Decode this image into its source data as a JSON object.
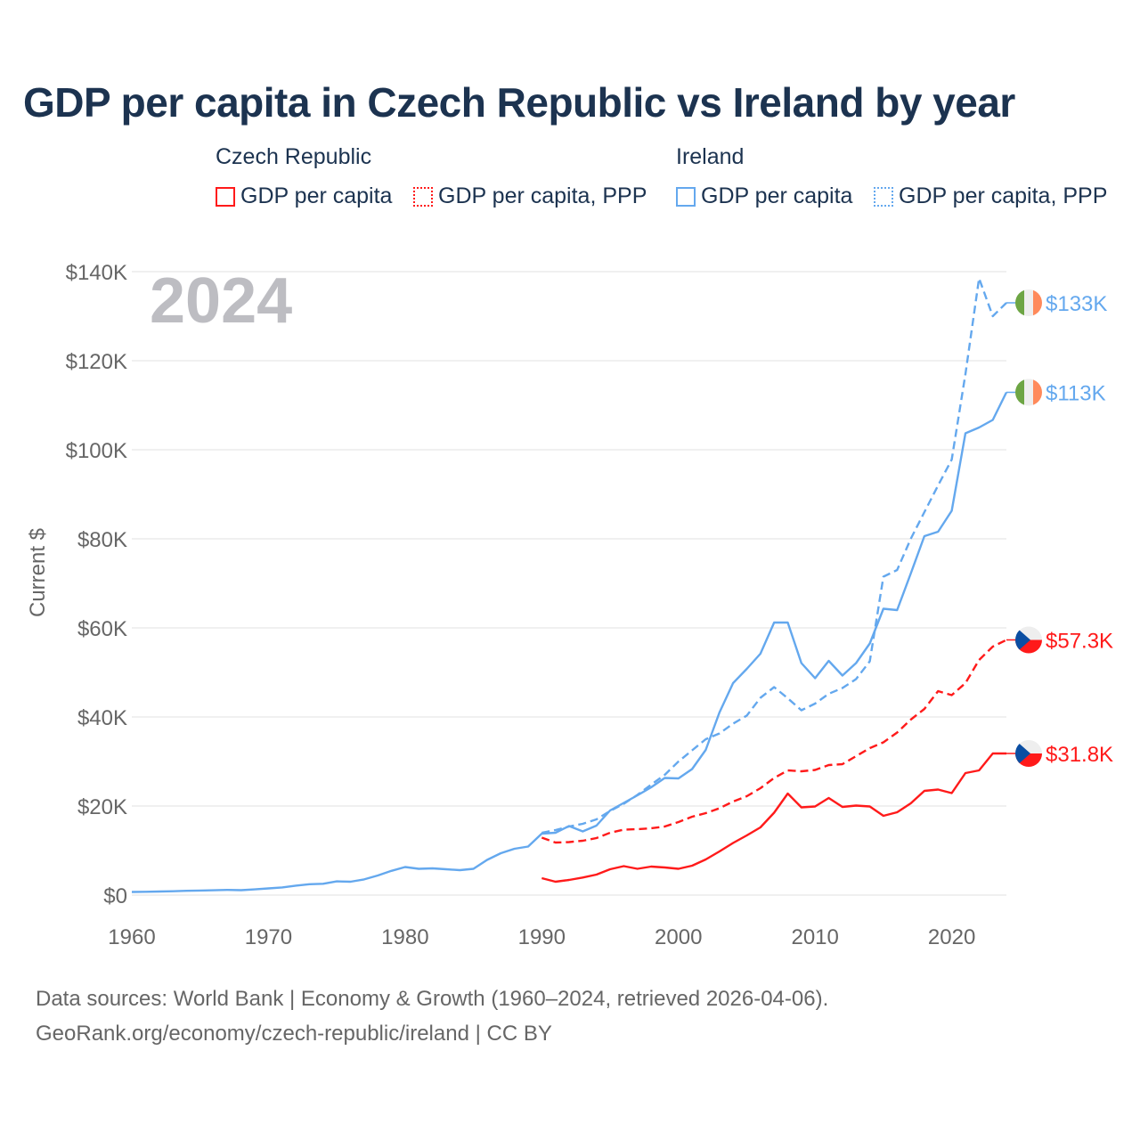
{
  "title": "GDP per capita in Czech Republic vs Ireland by year",
  "legend": {
    "groups": [
      {
        "name": "Czech Republic",
        "items": [
          "GDP per capita",
          "GDP per capita, PPP"
        ]
      },
      {
        "name": "Ireland",
        "items": [
          "GDP per capita",
          "GDP per capita, PPP"
        ]
      }
    ]
  },
  "year_label": "2024",
  "footer": {
    "line1": "Data sources: World Bank | Economy & Growth (1960–2024, retrieved 2026-04-06).",
    "line2": "GeoRank.org/economy/czech-republic/ireland | CC BY"
  },
  "colors": {
    "czech": "#ff1a1a",
    "ireland": "#64a8ee",
    "grid": "#e6e6e6",
    "axis_text": "#666666",
    "title": "#1c3350"
  },
  "chart_data": {
    "type": "line",
    "title": "GDP per capita in Czech Republic vs Ireland by year",
    "xlabel": "",
    "ylabel": "Current $",
    "xlim": [
      1960,
      2024
    ],
    "ylim": [
      0,
      140000
    ],
    "x_ticks": [
      1960,
      1970,
      1980,
      1990,
      2000,
      2010,
      2020
    ],
    "x_tick_labels": [
      "1960",
      "1970",
      "1980",
      "1990",
      "2000",
      "2010",
      "2020"
    ],
    "y_ticks": [
      0,
      20000,
      40000,
      60000,
      80000,
      100000,
      120000,
      140000
    ],
    "y_tick_labels": [
      "$0",
      "$20K",
      "$40K",
      "$60K",
      "$80K",
      "$100K",
      "$120K",
      "$140K"
    ],
    "grid": true,
    "legend_position": "top",
    "series": [
      {
        "name": "Ireland GDP per capita",
        "country": "ireland",
        "style": "solid",
        "end_label": "$113K",
        "start_year": 1960,
        "values": [
          690,
          740,
          800,
          860,
          960,
          1030,
          1080,
          1160,
          1100,
          1270,
          1500,
          1730,
          2120,
          2450,
          2550,
          3070,
          3000,
          3530,
          4400,
          5450,
          6300,
          5900,
          6000,
          5800,
          5600,
          5900,
          7900,
          9400,
          10400,
          10900,
          13800,
          14000,
          15500,
          14300,
          15600,
          19000,
          20700,
          22400,
          24200,
          26300,
          26200,
          28300,
          32600,
          41000,
          47600,
          50800,
          54200,
          61200,
          61200,
          52100,
          48700,
          52600,
          49300,
          52100,
          56500,
          64300,
          64000,
          72200,
          80600,
          81600,
          86300,
          103700,
          105000,
          106700,
          112900
        ]
      },
      {
        "name": "Ireland GDP per capita, PPP",
        "country": "ireland",
        "style": "dashed",
        "end_label": "$133K",
        "start_year": 1990,
        "values": [
          14000,
          14600,
          15400,
          16000,
          17000,
          18900,
          20500,
          22500,
          24800,
          27000,
          30000,
          32500,
          35000,
          36300,
          38500,
          40300,
          44300,
          46700,
          44200,
          41500,
          43000,
          45200,
          46500,
          48500,
          52500,
          71500,
          73000,
          80000,
          86000,
          92000,
          97800,
          117000,
          138500,
          130000,
          133000
        ]
      },
      {
        "name": "Czech Republic GDP per capita, PPP",
        "country": "czech",
        "style": "dashed",
        "end_label": "$57.3K",
        "start_year": 1990,
        "values": [
          12900,
          11800,
          11900,
          12200,
          12800,
          14000,
          14700,
          14800,
          15000,
          15400,
          16400,
          17600,
          18400,
          19500,
          21000,
          22200,
          24000,
          26300,
          28000,
          27800,
          28100,
          29200,
          29400,
          31200,
          33000,
          34300,
          36500,
          39400,
          41800,
          45800,
          44900,
          47600,
          52800,
          55800,
          57300
        ]
      },
      {
        "name": "Czech Republic GDP per capita",
        "country": "czech",
        "style": "solid",
        "end_label": "$31.8K",
        "start_year": 1990,
        "values": [
          3800,
          3000,
          3400,
          3950,
          4600,
          5800,
          6500,
          5900,
          6400,
          6200,
          5900,
          6600,
          8000,
          9800,
          11700,
          13400,
          15200,
          18500,
          22800,
          19700,
          19900,
          21800,
          19800,
          20100,
          19900,
          17800,
          18600,
          20600,
          23400,
          23700,
          22900,
          27400,
          28000,
          31800,
          31800
        ]
      }
    ]
  }
}
